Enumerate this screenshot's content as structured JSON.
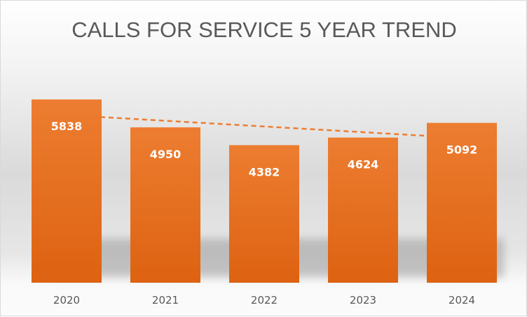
{
  "chart_data": {
    "type": "bar",
    "title": "CALLS FOR SERVICE 5 YEAR TREND",
    "categories": [
      "2020",
      "2021",
      "2022",
      "2023",
      "2024"
    ],
    "values": [
      5838,
      4950,
      4382,
      4624,
      5092
    ],
    "data_labels": [
      "5838",
      "4950",
      "4382",
      "4624",
      "5092"
    ],
    "ylim": [
      0,
      7000
    ],
    "grid": false,
    "legend": "none",
    "trendline": {
      "type": "linear",
      "style": "dashed"
    },
    "colors": {
      "bar_top": "#ED7D31",
      "bar_bottom": "#DD6211",
      "trendline": "#ED7D31",
      "title": "#595959"
    }
  }
}
